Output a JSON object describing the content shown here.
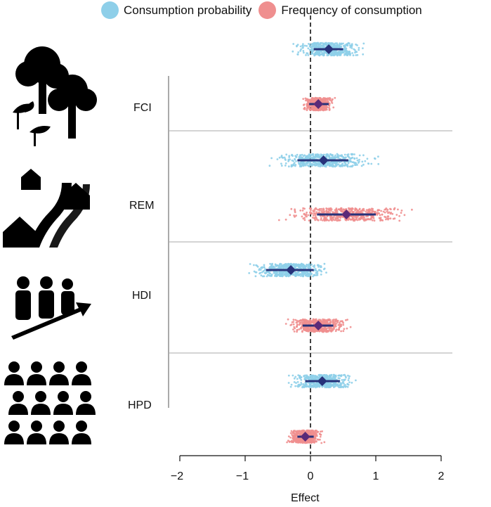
{
  "chart_data": {
    "type": "scatter",
    "xlabel": "Effect",
    "xlim": [
      -2.2,
      2.2
    ],
    "xticks": [
      -2,
      -1,
      0,
      1,
      2
    ],
    "xtick_labels": [
      "−2",
      "−1",
      "0",
      "1",
      "2"
    ],
    "reference_line": 0,
    "legend_position": "top",
    "legend": [
      {
        "name": "Consumption probability",
        "color": "#8ecfe9"
      },
      {
        "name": "Frequency of consumption",
        "color": "#ef8f8f"
      }
    ],
    "groups": [
      "FCI",
      "REM",
      "HDI",
      "HPD"
    ],
    "series": [
      {
        "name": "Consumption probability",
        "color": "#8ecfe9",
        "points": [
          {
            "group": "FCI",
            "estimate": 0.28,
            "ci": [
              0.05,
              0.5
            ],
            "range": [
              -0.3,
              0.85
            ]
          },
          {
            "group": "REM",
            "estimate": 0.2,
            "ci": [
              -0.2,
              0.58
            ],
            "range": [
              -0.75,
              1.05
            ]
          },
          {
            "group": "HDI",
            "estimate": -0.3,
            "ci": [
              -0.68,
              0.05
            ],
            "range": [
              -1.0,
              0.4
            ]
          },
          {
            "group": "HPD",
            "estimate": 0.18,
            "ci": [
              -0.08,
              0.45
            ],
            "range": [
              -0.35,
              0.78
            ]
          }
        ]
      },
      {
        "name": "Frequency of consumption",
        "color": "#ef8f8f",
        "points": [
          {
            "group": "FCI",
            "estimate": 0.12,
            "ci": [
              -0.02,
              0.28
            ],
            "range": [
              -0.12,
              0.42
            ]
          },
          {
            "group": "REM",
            "estimate": 0.55,
            "ci": [
              0.1,
              1.0
            ],
            "range": [
              -0.5,
              1.6
            ]
          },
          {
            "group": "HDI",
            "estimate": 0.12,
            "ci": [
              -0.12,
              0.35
            ],
            "range": [
              -0.42,
              0.65
            ]
          },
          {
            "group": "HPD",
            "estimate": -0.08,
            "ci": [
              -0.2,
              0.05
            ],
            "range": [
              -0.38,
              0.22
            ]
          }
        ]
      }
    ],
    "estimate_color": "#27327a",
    "overlap_marker_color": "#5a2a78",
    "icons": [
      "trees-icon",
      "houses-road-icon",
      "people-growth-icon",
      "crowd-icon"
    ]
  }
}
